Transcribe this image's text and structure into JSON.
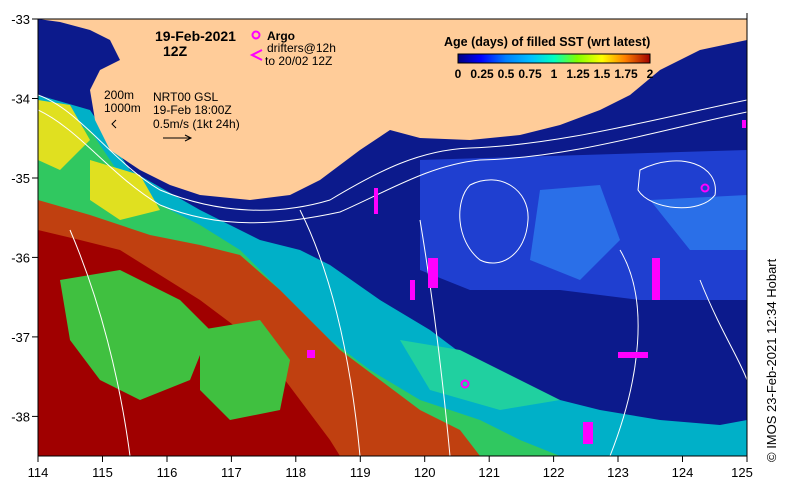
{
  "title": {
    "date": "19-Feb-2021",
    "time": "12Z"
  },
  "argo_legend": {
    "argo_label": "Argo",
    "drifters_label_1": "drifters@12h",
    "drifters_label_2": "to 20/02 12Z"
  },
  "depth_legend": {
    "contour_200": "200m",
    "contour_1000": "1000m",
    "product": "NRT00 GSL",
    "product_time": "19-Feb 18:00Z",
    "scale": "0.5m/s (1kt 24h)"
  },
  "colorbar": {
    "title": "Age (days) of filled SST (wrt latest)",
    "ticks": [
      "0",
      "0.25",
      "0.5",
      "0.75",
      "1",
      "1.25",
      "1.5",
      "1.75",
      "2"
    ],
    "colors": [
      "#000080",
      "#0000ff",
      "#0080ff",
      "#00c0ff",
      "#00ffc0",
      "#80ff00",
      "#ffff00",
      "#ff8000",
      "#ff0000",
      "#a00000"
    ]
  },
  "axes": {
    "lon_ticks": [
      "114",
      "115",
      "116",
      "117",
      "118",
      "119",
      "120",
      "121",
      "122",
      "123",
      "124",
      "125"
    ],
    "lat_ticks": [
      "-33",
      "-34",
      "-35",
      "-36",
      "-37",
      "-38"
    ],
    "lon_range": [
      114,
      125
    ],
    "lat_range": [
      -38.5,
      -33
    ]
  },
  "credit": "© IMOS 23-Feb-2021 12:34 Hobart",
  "colors": {
    "ocean_deep": "#0c1a8c",
    "land": "#ffcc99",
    "marker": "#ff00ff",
    "contour": "#ffffff"
  }
}
